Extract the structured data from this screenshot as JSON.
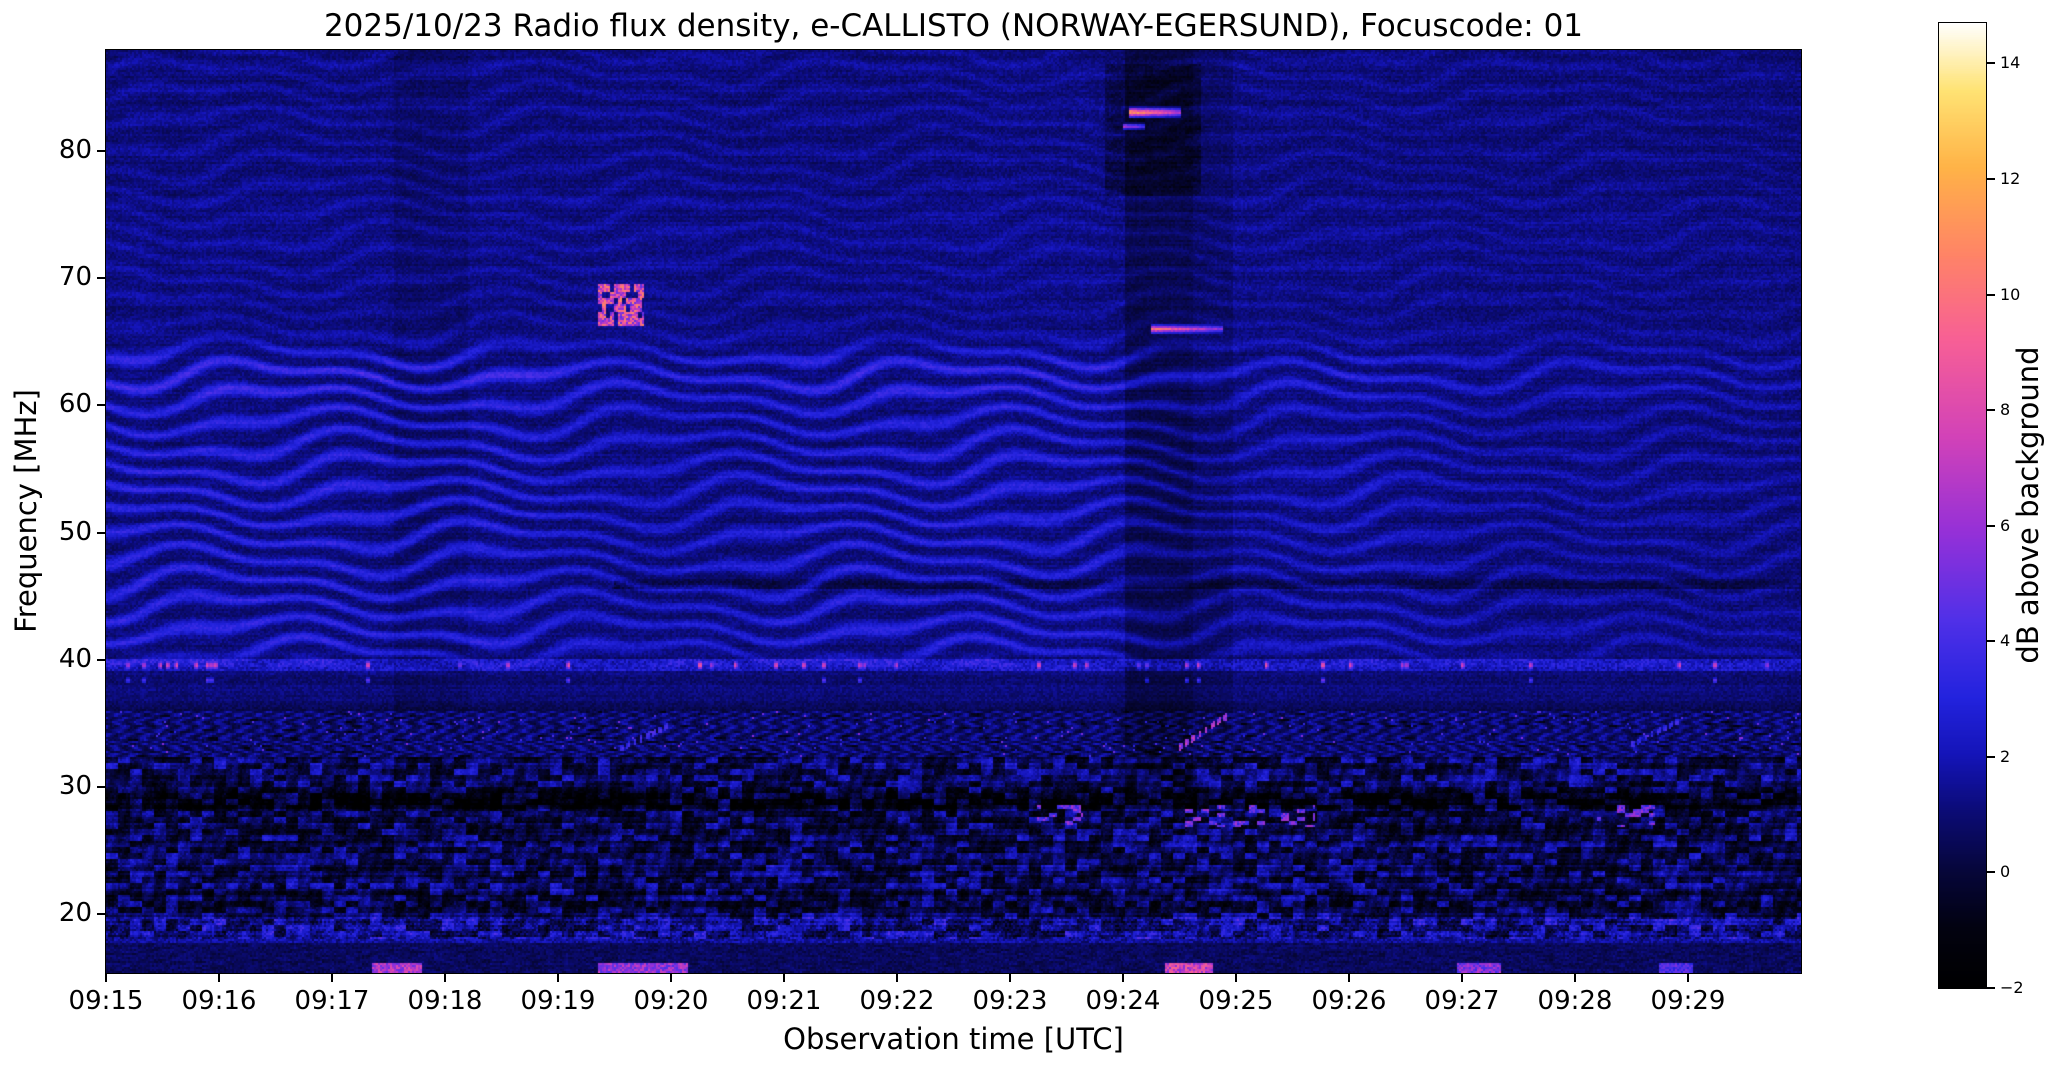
{
  "figure": {
    "title": "2025/10/23  Radio flux density, e-CALLISTO (NORWAY-EGERSUND), Focuscode: 01",
    "xlabel": "Observation time [UTC]",
    "ylabel": "Frequency [MHz]",
    "colorbar_label": "dB above background"
  },
  "chart_data": {
    "type": "heatmap",
    "title": "2025/10/23  Radio flux density, e-CALLISTO (NORWAY-EGERSUND), Focuscode: 01",
    "xlabel": "Observation time [UTC]",
    "ylabel": "Frequency [MHz]",
    "x_ticks": [
      "09:15",
      "09:16",
      "09:17",
      "09:18",
      "09:19",
      "09:20",
      "09:21",
      "09:22",
      "09:23",
      "09:24",
      "09:25",
      "09:26",
      "09:27",
      "09:28",
      "09:29"
    ],
    "x_tick_minutes": [
      0,
      1,
      2,
      3,
      4,
      5,
      6,
      7,
      8,
      9,
      10,
      11,
      12,
      13,
      14
    ],
    "y_tick_values": [
      20,
      30,
      40,
      50,
      60,
      70,
      80
    ],
    "time_span_minutes": 15,
    "freq_range_mhz": [
      15.4,
      87.9
    ],
    "grid": false,
    "colorbar": {
      "label": "dB above background",
      "vmin": -2,
      "vmax": 14.7,
      "ticks": [
        {
          "v": 14,
          "label": "14"
        },
        {
          "v": 12,
          "label": "12"
        },
        {
          "v": 10,
          "label": "10"
        },
        {
          "v": 8,
          "label": "8"
        },
        {
          "v": 6,
          "label": "6"
        },
        {
          "v": 4,
          "label": "4"
        },
        {
          "v": 2,
          "label": "2"
        },
        {
          "v": 0,
          "label": "0"
        },
        {
          "v": -2,
          "label": "−2"
        }
      ],
      "colormap_stops": [
        [
          0.0,
          "#000000"
        ],
        [
          0.06,
          "#020210"
        ],
        [
          0.12,
          "#06063a"
        ],
        [
          0.18,
          "#0b0b74"
        ],
        [
          0.24,
          "#1414b8"
        ],
        [
          0.3,
          "#2323de"
        ],
        [
          0.38,
          "#5030e8"
        ],
        [
          0.47,
          "#9430d8"
        ],
        [
          0.57,
          "#d242b8"
        ],
        [
          0.67,
          "#f75f96"
        ],
        [
          0.76,
          "#ff8466"
        ],
        [
          0.85,
          "#ffb347"
        ],
        [
          0.93,
          "#ffe374"
        ],
        [
          1.0,
          "#ffffff"
        ]
      ]
    },
    "background_level_db": 1.0,
    "features": [
      {
        "type": "ripples",
        "f0": 41,
        "f1": 63,
        "edge": 2.5,
        "amp": 2.3,
        "t_env": [
          [
            0,
            1.0
          ],
          [
            3.3,
            1.0
          ],
          [
            4.8,
            0.65
          ],
          [
            6.5,
            0.95
          ],
          [
            8.8,
            0.9
          ],
          [
            9.8,
            0.5
          ],
          [
            11,
            0.7
          ],
          [
            12.5,
            0.45
          ],
          [
            15,
            0.4
          ]
        ],
        "note": "wavy ionospheric interference ripple pattern 41-63 MHz, strongest 09:15-09:18 and 09:21-09:24"
      },
      {
        "type": "ripples",
        "f0": 62,
        "f1": 87.9,
        "edge": 2,
        "amp": 0.7,
        "t_env": [
          [
            0,
            1
          ],
          [
            9,
            0.9
          ],
          [
            15,
            0.7
          ]
        ],
        "note": "faint ripple texture above 62 MHz"
      },
      {
        "type": "striped_band",
        "f0": 32.4,
        "f1": 35.9,
        "note": "dense vertical RFI striping 32-36 MHz, -2 to 3 dB"
      },
      {
        "type": "patch_region",
        "f0": 15.4,
        "f1": 32.4,
        "note": "patchy broadband noise below 32 MHz, -2 to 4 dB"
      },
      {
        "type": "bottom_floor",
        "f": 18.0,
        "note": "dark lowest channels"
      },
      {
        "type": "dark_row",
        "f": 29.0,
        "hw": 0.7,
        "t0": 0,
        "t1": 15,
        "depth": 1.3,
        "note": "dark absorption band ~29 MHz"
      },
      {
        "type": "dark_row",
        "f": 45.9,
        "hw": 0.35,
        "t0": 4.5,
        "t1": 15,
        "depth": 0.85,
        "note": "dark horizontal channel ~46 MHz after 09:19"
      },
      {
        "type": "dark_row",
        "f": 36.3,
        "hw": 0.3,
        "t0": 0,
        "t1": 15,
        "depth": 0.6
      },
      {
        "type": "bright_row",
        "f": 18.8,
        "hw": 1.0,
        "boost": 1.0,
        "note": "enhanced blue noise band ~19 MHz"
      },
      {
        "type": "bright_row",
        "f": 39.55,
        "hw": 0.5,
        "boost": 1.2,
        "note": "continuous RFI channel at 39.5 MHz"
      },
      {
        "type": "rfi_bursts",
        "f": 39.55,
        "hw": 0.45,
        "prob": 0.09,
        "db": 8.5,
        "note": "intermittent pink/orange bursts on 39.5 MHz channel over full duration"
      },
      {
        "type": "rfi_bursts",
        "f": 38.35,
        "hw": 0.25,
        "prob": 0.035,
        "db": 4.5
      },
      {
        "type": "dark_column",
        "t0": 2.55,
        "t1": 3.2,
        "f0": 36,
        "f1": 87.9,
        "depth": 0.35,
        "note": "faint dark vertical band ~09:18"
      },
      {
        "type": "dark_column",
        "t0": 9.02,
        "t1": 9.62,
        "f0": 30,
        "f1": 87.9,
        "depth": 0.9,
        "note": "instrumental disturbance column 09:24:00-09:24:40"
      },
      {
        "type": "dark_column",
        "t0": 9.62,
        "t1": 9.97,
        "f0": 34,
        "f1": 87.9,
        "depth": 0.5
      },
      {
        "type": "dark_patch",
        "t0": 8.85,
        "t1": 9.7,
        "f0": 76.5,
        "f1": 86.8,
        "depth": 1.0,
        "note": "black patches around 80 MHz near 09:24"
      },
      {
        "type": "burst_cluster",
        "t0": 4.35,
        "t1": 4.75,
        "f0": 66.3,
        "f1": 69.6,
        "db": 11,
        "note": "dashed pink burst cluster ~68 MHz at 09:19:20-09:19:45, 7-12 dB"
      },
      {
        "type": "streak",
        "t0": 9.05,
        "t1": 9.52,
        "f": 83.0,
        "hw": 0.5,
        "db": 14,
        "note": "intense narrowband emission 83 MHz 09:24:00-09:24:30, 10-14 dB"
      },
      {
        "type": "streak",
        "t0": 9.0,
        "t1": 9.2,
        "f": 81.9,
        "hw": 0.3,
        "db": 9
      },
      {
        "type": "streak",
        "t0": 9.25,
        "t1": 9.88,
        "f": 66.0,
        "hw": 0.45,
        "db": 11.5,
        "note": "narrowband emission 66 MHz 09:24:15-09:24:55, 9-12 dB"
      },
      {
        "type": "drift",
        "t0": 9.5,
        "t1": 9.95,
        "fA": 33.1,
        "fB": 35.7,
        "db": 8,
        "note": "rising dotted drift 33-35.5 MHz at 09:24:30"
      },
      {
        "type": "drift",
        "t0": 4.55,
        "t1": 5.0,
        "fA": 33.0,
        "fB": 34.9,
        "db": 4.5,
        "note": "faint rising drift at 09:19:30"
      },
      {
        "type": "drift",
        "t0": 13.5,
        "t1": 13.95,
        "fA": 33.3,
        "fB": 35.3,
        "db": 4.2,
        "note": "faint rising drift at 09:28:30"
      },
      {
        "type": "spot_cluster",
        "f0": 26.8,
        "f1": 28.6,
        "windows": [
          [
            8.25,
            8.65
          ],
          [
            9.55,
            10.7
          ],
          [
            13.2,
            13.7
          ]
        ],
        "prob": 0.22,
        "db": 6.5,
        "note": "magenta RFI patches 27-28 MHz near 09:23, 09:25-09:26, 09:28"
      },
      {
        "type": "bottom_bursts",
        "fTop": 16.2,
        "segments": [
          [
            2.35,
            2.8,
            8.5
          ],
          [
            4.35,
            5.15,
            7.5
          ],
          [
            9.38,
            9.8,
            9.5
          ],
          [
            11.95,
            12.35,
            7
          ],
          [
            13.75,
            14.05,
            5.5
          ]
        ],
        "note": "strong orange bursts on lowest channels at 09:17:25, 09:19:30-09:20:05, 09:24:30, 09:27, 09:28:50"
      }
    ]
  }
}
